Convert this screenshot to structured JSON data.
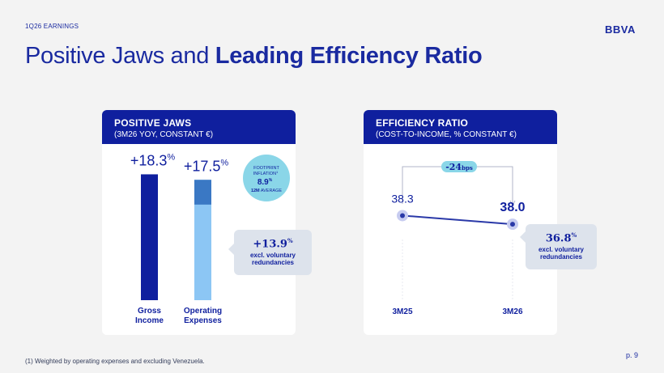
{
  "header": {
    "section_label": "1Q26 EARNINGS",
    "logo": "BBVA"
  },
  "title": {
    "regular": "Positive Jaws",
    "connector": " and ",
    "bold": "Leading Efficiency Ratio"
  },
  "left_card": {
    "title": "POSITIVE JAWS",
    "subtitle": "(3M26 YOY, CONSTANT €)"
  },
  "right_card": {
    "title": "EFFICIENCY RATIO",
    "subtitle": "(COST-TO-INCOME, % CONSTANT €)"
  },
  "colors": {
    "navy": "#0f1f9e",
    "mid_blue": "#3a78c4",
    "light_blue": "#8cc6f4",
    "teal_bubble": "#8ad6e8",
    "callout_bg": "#dde3ec",
    "line": "#2a39a8",
    "point_ring": "#c7ccf0"
  },
  "chart_data": [
    {
      "type": "bar",
      "categories": [
        "Gross Income",
        "Operating Expenses"
      ],
      "values": [
        18.3,
        17.5
      ],
      "value_labels": [
        "+18.3",
        "+17.5"
      ],
      "value_suffix": "%",
      "ylim": [
        0,
        20
      ],
      "opex_excl_redundancies": 13.9,
      "callout": {
        "value": "+13.9",
        "suffix": "%",
        "line1": "excl. voluntary",
        "line2": "redundancies"
      },
      "bubble": {
        "line1": "FOOTPRINT",
        "line2": "INFLATION",
        "footnote_ref": "1",
        "value": "8.9",
        "suffix": "%",
        "line3a": "12M",
        "line3b": "AVERAGE"
      }
    },
    {
      "type": "line",
      "categories": [
        "3M25",
        "3M26"
      ],
      "values": [
        38.3,
        38.0
      ],
      "value_labels": [
        "38.3",
        "38.0"
      ],
      "ylim": [
        35.5,
        40
      ],
      "change_label": {
        "value": "-24",
        "unit": "bps"
      },
      "callout": {
        "value": "36.8",
        "suffix": "%",
        "line1": "excl. voluntary",
        "line2": "redundancies"
      }
    }
  ],
  "footnote": "(1) Weighted by operating expenses and excluding Venezuela.",
  "page_number": "p. 9"
}
